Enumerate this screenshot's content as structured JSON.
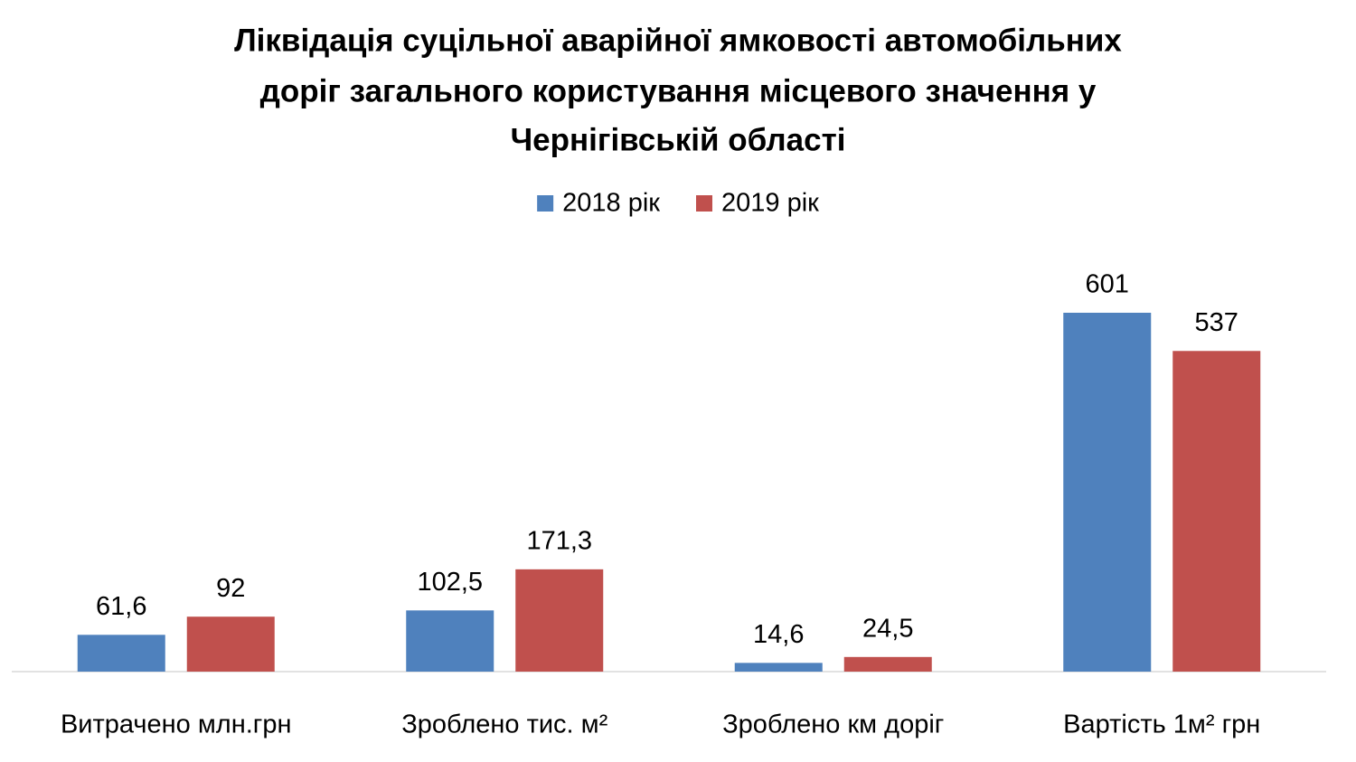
{
  "chart_data": {
    "type": "bar",
    "title": [
      "Ліквідація суцільної аварійної ямковості автомобільних",
      "доріг загального користування місцевого значення у",
      "Чернігівській області"
    ],
    "categories": [
      "Витрачено млн.грн",
      "Зроблено тис. м²",
      "Зроблено км доріг",
      "Вартість 1м²  грн"
    ],
    "series": [
      {
        "name": "2018 рік",
        "color": "#4f81bd",
        "values": [
          61.6,
          102.5,
          14.6,
          601
        ],
        "value_labels": [
          "61,6",
          "102,5",
          "14,6",
          "601"
        ]
      },
      {
        "name": "2019 рік",
        "color": "#c0504d",
        "values": [
          92,
          171.3,
          24.5,
          537
        ],
        "value_labels": [
          "92",
          "171,3",
          "24,5",
          "537"
        ]
      }
    ],
    "ylim": [
      0,
      700
    ],
    "legend": "top"
  }
}
